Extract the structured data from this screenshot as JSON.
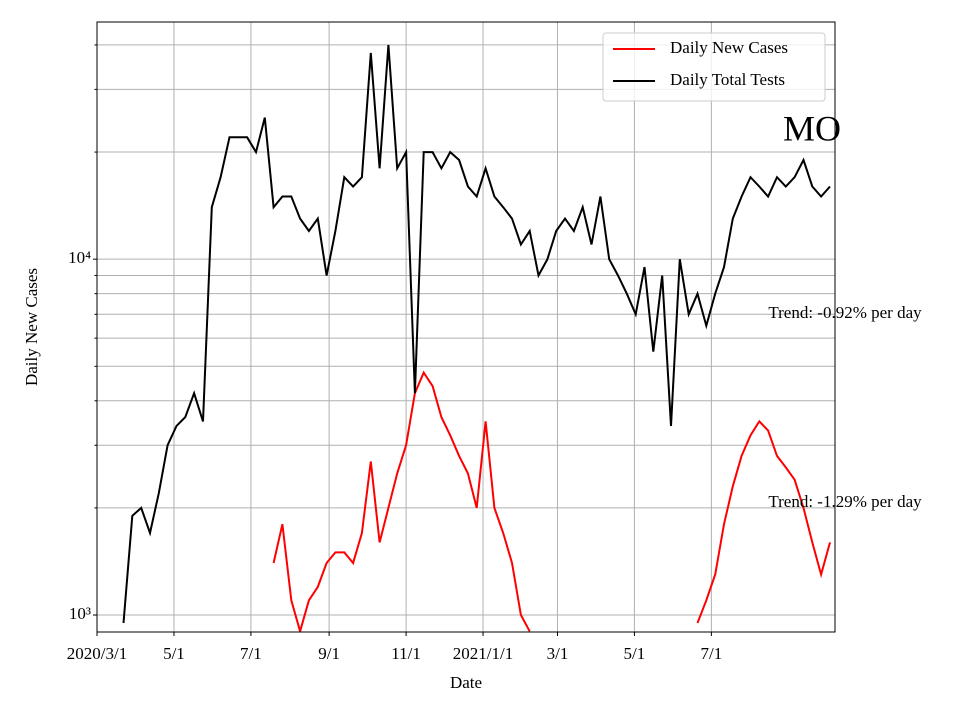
{
  "chart_data": {
    "type": "line",
    "annotation": "MO",
    "xlabel": "Date",
    "ylabel": "Daily New Cases",
    "log_y": true,
    "grid": true,
    "legend": "upper right",
    "xlim": [
      "2020-03-01",
      "2021-10-07"
    ],
    "xticks": [
      {
        "value": "2020-03-01",
        "label": "2020/3/1"
      },
      {
        "value": "2020-05-01",
        "label": "5/1"
      },
      {
        "value": "2020-07-01",
        "label": "7/1"
      },
      {
        "value": "2020-09-01",
        "label": "9/1"
      },
      {
        "value": "2020-11-01",
        "label": "11/1"
      },
      {
        "value": "2021-01-01",
        "label": "2021/1/1"
      },
      {
        "value": "2021-03-01",
        "label": "3/1"
      },
      {
        "value": "2021-05-01",
        "label": "5/1"
      },
      {
        "value": "2021-07-01",
        "label": "7/1"
      }
    ],
    "ylim": [
      896,
      46400
    ],
    "yticks": [
      {
        "value": 1000,
        "label": "10³"
      },
      {
        "value": 10000,
        "label": "10⁴"
      }
    ],
    "yminorticks": [
      2000,
      3000,
      4000,
      5000,
      6000,
      7000,
      8000,
      9000,
      20000,
      30000,
      40000
    ],
    "trend_labels": [
      "Trend: -0.92% per day",
      "Trend: -1.29% per day"
    ],
    "x": [
      "2020-03-01",
      "2020-03-08",
      "2020-03-15",
      "2020-03-22",
      "2020-03-29",
      "2020-04-05",
      "2020-04-12",
      "2020-04-19",
      "2020-04-26",
      "2020-05-03",
      "2020-05-10",
      "2020-05-17",
      "2020-05-24",
      "2020-05-31",
      "2020-06-07",
      "2020-06-14",
      "2020-06-21",
      "2020-06-28",
      "2020-07-05",
      "2020-07-12",
      "2020-07-19",
      "2020-07-26",
      "2020-08-02",
      "2020-08-09",
      "2020-08-16",
      "2020-08-23",
      "2020-08-30",
      "2020-09-06",
      "2020-09-13",
      "2020-09-20",
      "2020-09-27",
      "2020-10-04",
      "2020-10-11",
      "2020-10-18",
      "2020-10-25",
      "2020-11-01",
      "2020-11-08",
      "2020-11-15",
      "2020-11-22",
      "2020-11-29",
      "2020-12-06",
      "2020-12-13",
      "2020-12-20",
      "2020-12-27",
      "2021-01-03",
      "2021-01-10",
      "2021-01-17",
      "2021-01-24",
      "2021-01-31",
      "2021-02-07",
      "2021-02-14",
      "2021-02-21",
      "2021-02-28",
      "2021-03-07",
      "2021-03-14",
      "2021-03-21",
      "2021-03-28",
      "2021-04-04",
      "2021-04-11",
      "2021-04-18",
      "2021-04-25",
      "2021-05-02",
      "2021-05-09",
      "2021-05-16",
      "2021-05-23",
      "2021-05-30",
      "2021-06-06",
      "2021-06-13",
      "2021-06-20",
      "2021-06-27",
      "2021-07-04",
      "2021-07-11",
      "2021-07-18",
      "2021-07-25",
      "2021-08-01",
      "2021-08-08",
      "2021-08-15",
      "2021-08-22",
      "2021-08-29",
      "2021-09-05",
      "2021-09-12",
      "2021-09-19",
      "2021-09-26",
      "2021-10-03"
    ],
    "series": [
      {
        "name": "Daily New Cases",
        "color": "#ff0000",
        "values": [
          null,
          null,
          null,
          null,
          null,
          null,
          null,
          null,
          null,
          null,
          null,
          null,
          null,
          null,
          null,
          null,
          null,
          null,
          null,
          null,
          1400,
          1800,
          1100,
          900,
          1100,
          1200,
          1400,
          1500,
          1500,
          1400,
          1700,
          2700,
          1600,
          2000,
          2500,
          3000,
          4200,
          4800,
          4400,
          3600,
          3200,
          2800,
          2500,
          2000,
          3500,
          2000,
          1700,
          1400,
          1000,
          900,
          null,
          null,
          null,
          null,
          null,
          null,
          null,
          null,
          null,
          null,
          null,
          null,
          null,
          null,
          null,
          null,
          null,
          null,
          950,
          1100,
          1300,
          1800,
          2300,
          2800,
          3200,
          3500,
          3300,
          2800,
          2600,
          2400,
          2000,
          1600,
          1300,
          1600
        ]
      },
      {
        "name": "Daily Total Tests",
        "color": "#000000",
        "values": [
          null,
          null,
          null,
          950,
          1900,
          2000,
          1700,
          2200,
          3000,
          3400,
          3600,
          4200,
          3500,
          14000,
          17000,
          22000,
          22000,
          22000,
          20000,
          25000,
          14000,
          15000,
          15000,
          13000,
          12000,
          13000,
          9000,
          12000,
          17000,
          16000,
          17000,
          38000,
          18000,
          40000,
          18000,
          20000,
          4200,
          20000,
          20000,
          18000,
          20000,
          19000,
          16000,
          15000,
          18000,
          15000,
          14000,
          13000,
          11000,
          12000,
          9000,
          10000,
          12000,
          13000,
          12000,
          14000,
          11000,
          15000,
          10000,
          9000,
          8000,
          7000,
          9500,
          5500,
          9000,
          3400,
          10000,
          7000,
          8000,
          6500,
          8000,
          9500,
          13000,
          15000,
          17000,
          16000,
          15000,
          17000,
          16000,
          17000,
          19000,
          16000,
          15000,
          16000
        ]
      }
    ]
  }
}
